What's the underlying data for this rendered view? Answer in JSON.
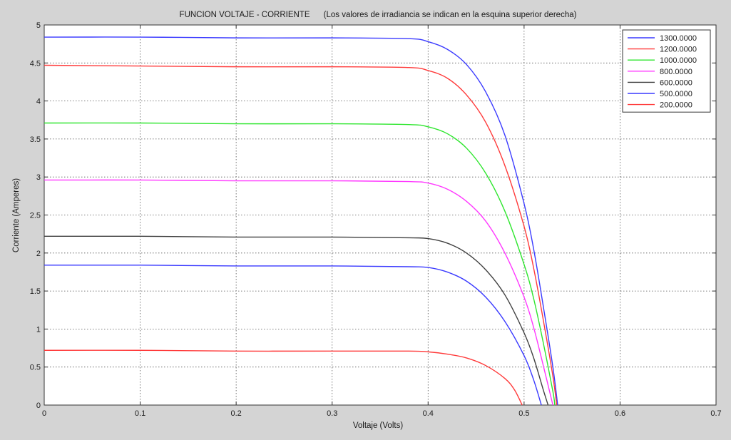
{
  "chart_data": {
    "type": "line",
    "title": "FUNCION VOLTAJE - CORRIENTE      (Los valores de irradiancia se indican en la esquina superior derecha)",
    "xlabel": "Voltaje (Volts)",
    "ylabel": "Corriente (Amperes)",
    "xlim": [
      0,
      0.7
    ],
    "ylim": [
      0,
      5
    ],
    "x_ticks": [
      "0",
      "0.1",
      "0.2",
      "0.3",
      "0.4",
      "0.5",
      "0.6",
      "0.7"
    ],
    "y_ticks": [
      "0",
      "0.5",
      "1",
      "1.5",
      "2",
      "2.5",
      "3",
      "3.5",
      "4",
      "4.5",
      "5"
    ],
    "grid": true,
    "legend_position": "top-right",
    "series": [
      {
        "name": "1300.0000",
        "color": "#3a3aff",
        "points": [
          [
            0,
            4.84
          ],
          [
            0.1,
            4.84
          ],
          [
            0.2,
            4.83
          ],
          [
            0.3,
            4.83
          ],
          [
            0.38,
            4.82
          ],
          [
            0.4,
            4.78
          ],
          [
            0.42,
            4.68
          ],
          [
            0.44,
            4.48
          ],
          [
            0.46,
            4.12
          ],
          [
            0.48,
            3.55
          ],
          [
            0.5,
            2.65
          ],
          [
            0.51,
            2.05
          ],
          [
            0.52,
            1.3
          ],
          [
            0.53,
            0.5
          ],
          [
            0.535,
            0
          ]
        ]
      },
      {
        "name": "1200.0000",
        "color": "#ff3a3a",
        "points": [
          [
            0,
            4.47
          ],
          [
            0.1,
            4.46
          ],
          [
            0.2,
            4.45
          ],
          [
            0.3,
            4.45
          ],
          [
            0.38,
            4.44
          ],
          [
            0.4,
            4.4
          ],
          [
            0.42,
            4.3
          ],
          [
            0.44,
            4.08
          ],
          [
            0.46,
            3.72
          ],
          [
            0.48,
            3.15
          ],
          [
            0.5,
            2.35
          ],
          [
            0.51,
            1.8
          ],
          [
            0.52,
            1.12
          ],
          [
            0.53,
            0.38
          ],
          [
            0.534,
            0
          ]
        ]
      },
      {
        "name": "1000.0000",
        "color": "#2ee62e",
        "points": [
          [
            0,
            3.71
          ],
          [
            0.1,
            3.71
          ],
          [
            0.2,
            3.7
          ],
          [
            0.3,
            3.7
          ],
          [
            0.38,
            3.69
          ],
          [
            0.4,
            3.66
          ],
          [
            0.42,
            3.57
          ],
          [
            0.44,
            3.38
          ],
          [
            0.46,
            3.05
          ],
          [
            0.48,
            2.55
          ],
          [
            0.5,
            1.85
          ],
          [
            0.51,
            1.4
          ],
          [
            0.52,
            0.82
          ],
          [
            0.53,
            0.18
          ],
          [
            0.532,
            0
          ]
        ]
      },
      {
        "name": "800.0000",
        "color": "#ff38ff",
        "points": [
          [
            0,
            2.96
          ],
          [
            0.1,
            2.96
          ],
          [
            0.2,
            2.95
          ],
          [
            0.3,
            2.95
          ],
          [
            0.38,
            2.94
          ],
          [
            0.4,
            2.92
          ],
          [
            0.42,
            2.84
          ],
          [
            0.44,
            2.68
          ],
          [
            0.46,
            2.42
          ],
          [
            0.48,
            2.0
          ],
          [
            0.5,
            1.42
          ],
          [
            0.51,
            1.02
          ],
          [
            0.52,
            0.52
          ],
          [
            0.53,
            0
          ]
        ]
      },
      {
        "name": "600.0000",
        "color": "#404040",
        "points": [
          [
            0,
            2.22
          ],
          [
            0.1,
            2.22
          ],
          [
            0.2,
            2.21
          ],
          [
            0.3,
            2.21
          ],
          [
            0.38,
            2.2
          ],
          [
            0.4,
            2.19
          ],
          [
            0.42,
            2.13
          ],
          [
            0.44,
            2.0
          ],
          [
            0.46,
            1.78
          ],
          [
            0.48,
            1.45
          ],
          [
            0.5,
            0.95
          ],
          [
            0.51,
            0.62
          ],
          [
            0.52,
            0.2
          ],
          [
            0.525,
            0
          ]
        ]
      },
      {
        "name": "500.0000",
        "color": "#3a3aff",
        "points": [
          [
            0,
            1.84
          ],
          [
            0.1,
            1.84
          ],
          [
            0.2,
            1.83
          ],
          [
            0.3,
            1.83
          ],
          [
            0.38,
            1.82
          ],
          [
            0.4,
            1.81
          ],
          [
            0.42,
            1.75
          ],
          [
            0.44,
            1.63
          ],
          [
            0.46,
            1.42
          ],
          [
            0.48,
            1.1
          ],
          [
            0.5,
            0.65
          ],
          [
            0.51,
            0.33
          ],
          [
            0.518,
            0
          ]
        ]
      },
      {
        "name": "200.0000",
        "color": "#ff3a3a",
        "points": [
          [
            0,
            0.72
          ],
          [
            0.1,
            0.72
          ],
          [
            0.2,
            0.71
          ],
          [
            0.3,
            0.71
          ],
          [
            0.38,
            0.71
          ],
          [
            0.4,
            0.7
          ],
          [
            0.42,
            0.67
          ],
          [
            0.44,
            0.62
          ],
          [
            0.46,
            0.52
          ],
          [
            0.48,
            0.35
          ],
          [
            0.49,
            0.2
          ],
          [
            0.498,
            0
          ]
        ]
      }
    ]
  }
}
